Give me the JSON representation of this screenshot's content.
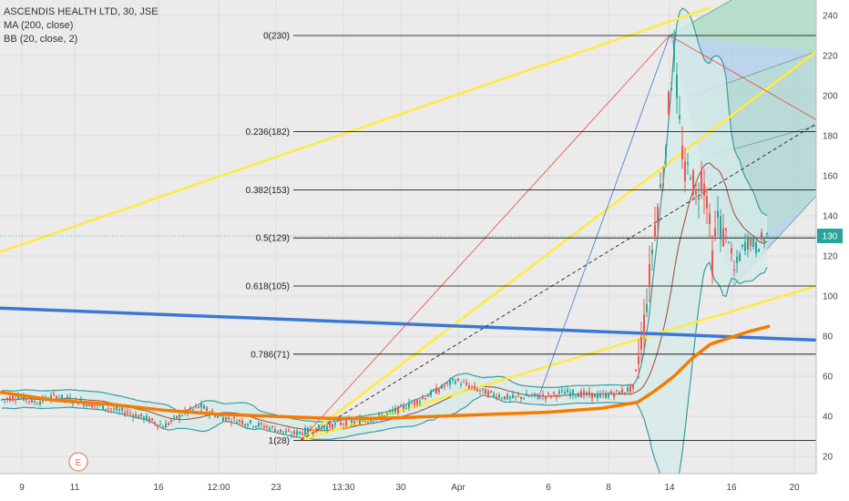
{
  "legend": {
    "symbol_line": "ASCENDIS HEALTH LTD, 30, JSE",
    "ma_line": "MA (200, close)",
    "bb_line": "BB (20, close, 2)"
  },
  "event_marker": "E",
  "colors": {
    "background": "#ebebeb",
    "panel": "#ffffff",
    "up_candle": "#26a69a",
    "down_candle": "#ef5350",
    "ma_line": "#f57c00",
    "bb_line": "#3b9c9c",
    "bb_fill": "#d6ebe8",
    "basis_line": "#a0463c",
    "blue_line": "#3a78d4",
    "yellow_line": "#ffeb3b",
    "fib_line": "#000000",
    "pitchfork_upper_fill": "#9ec7ec",
    "pitchfork_lower_fill": "#b6dfc6",
    "price_tag": "#26a69a"
  },
  "chart_data": {
    "type": "candlestick",
    "title": "ASCENDIS HEALTH LTD, 30, JSE",
    "x_tick_labels": [
      "9",
      "11",
      "16",
      "12:00",
      "23",
      "13:30",
      "30",
      "Apr",
      "6",
      "8",
      "14",
      "16",
      "20"
    ],
    "y_ticks": [
      20,
      40,
      60,
      80,
      100,
      120,
      140,
      160,
      180,
      200,
      220,
      240
    ],
    "ylim": [
      13,
      244
    ],
    "last_price": 130,
    "last_price_label": "130",
    "grid": true,
    "legend_position": "top-left",
    "fib_levels": [
      {
        "ratio": "0",
        "value": 230,
        "label": "0(230)"
      },
      {
        "ratio": "0.236",
        "value": 182,
        "label": "0.236(182)"
      },
      {
        "ratio": "0.382",
        "value": 153,
        "label": "0.382(153)"
      },
      {
        "ratio": "0.5",
        "value": 129,
        "label": "0.5(129)"
      },
      {
        "ratio": "0.618",
        "value": 105,
        "label": "0.618(105)"
      },
      {
        "ratio": "0.786",
        "value": 71,
        "label": "0.786(71)"
      },
      {
        "ratio": "1",
        "value": 28,
        "label": "1(28)"
      }
    ],
    "price_anchors": [
      [
        0,
        48
      ],
      [
        20,
        50
      ],
      [
        40,
        47
      ],
      [
        60,
        50
      ],
      [
        80,
        48
      ],
      [
        100,
        46
      ],
      [
        120,
        44
      ],
      [
        140,
        42
      ],
      [
        160,
        39
      ],
      [
        180,
        35
      ],
      [
        200,
        41
      ],
      [
        220,
        45
      ],
      [
        240,
        40
      ],
      [
        260,
        38
      ],
      [
        280,
        36
      ],
      [
        300,
        34
      ],
      [
        320,
        31
      ],
      [
        340,
        33
      ],
      [
        360,
        35
      ],
      [
        380,
        37
      ],
      [
        400,
        38
      ],
      [
        420,
        40
      ],
      [
        440,
        44
      ],
      [
        460,
        48
      ],
      [
        480,
        53
      ],
      [
        500,
        58
      ],
      [
        520,
        54
      ],
      [
        540,
        51
      ],
      [
        560,
        49
      ],
      [
        580,
        50
      ],
      [
        600,
        50
      ],
      [
        620,
        52
      ],
      [
        640,
        51
      ],
      [
        660,
        50
      ],
      [
        680,
        52
      ],
      [
        695,
        54
      ],
      [
        705,
        80
      ],
      [
        712,
        105
      ],
      [
        720,
        140
      ],
      [
        728,
        160
      ],
      [
        735,
        200
      ],
      [
        740,
        222
      ],
      [
        746,
        185
      ],
      [
        752,
        160
      ],
      [
        758,
        165
      ],
      [
        764,
        148
      ],
      [
        770,
        160
      ],
      [
        776,
        150
      ],
      [
        782,
        118
      ],
      [
        788,
        140
      ],
      [
        794,
        130
      ],
      [
        800,
        128
      ],
      [
        806,
        112
      ],
      [
        812,
        120
      ],
      [
        818,
        126
      ],
      [
        824,
        128
      ],
      [
        830,
        124
      ],
      [
        836,
        128
      ],
      [
        842,
        130
      ]
    ],
    "ma200_curve": [
      [
        0,
        52
      ],
      [
        60,
        48
      ],
      [
        120,
        46
      ],
      [
        180,
        43
      ],
      [
        240,
        41
      ],
      [
        300,
        40
      ],
      [
        360,
        39
      ],
      [
        420,
        39
      ],
      [
        480,
        40
      ],
      [
        540,
        41
      ],
      [
        600,
        42
      ],
      [
        660,
        44
      ],
      [
        700,
        47
      ],
      [
        720,
        53
      ],
      [
        740,
        60
      ],
      [
        760,
        69
      ],
      [
        780,
        76
      ],
      [
        800,
        79
      ],
      [
        820,
        82
      ],
      [
        845,
        85
      ]
    ]
  }
}
